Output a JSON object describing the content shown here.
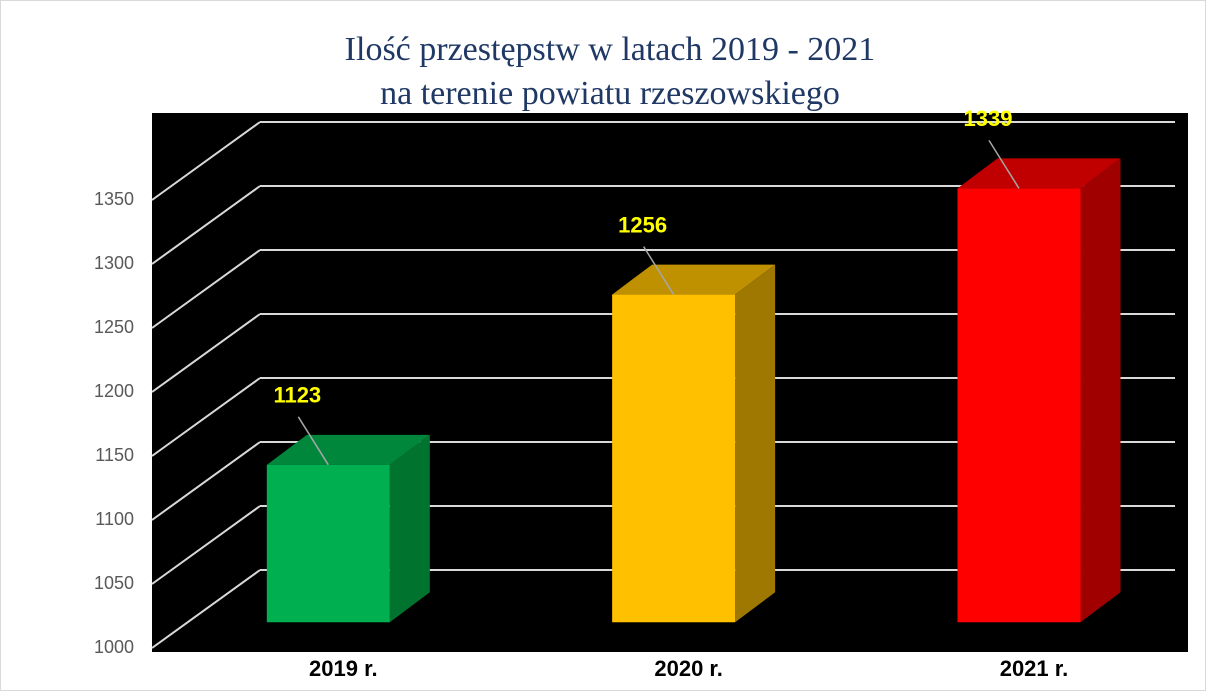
{
  "chart_data": {
    "type": "bar3d",
    "title": "Ilość przestępstw w latach 2019 - 2021",
    "subtitle": "na terenie powiatu rzeszowskiego",
    "categories": [
      "2019 r.",
      "2020 r.",
      "2021 r."
    ],
    "values": [
      1123,
      1256,
      1339
    ],
    "colors": [
      "#00b050",
      "#ffc000",
      "#ff0000"
    ],
    "top_colors": [
      "#00873c",
      "#bf9000",
      "#c00000"
    ],
    "side_colors": [
      "#00732f",
      "#9e7800",
      "#a00000"
    ],
    "ylim": [
      1000,
      1350
    ],
    "yticks": [
      1000,
      1050,
      1100,
      1150,
      1200,
      1250,
      1300,
      1350
    ],
    "grid": true
  }
}
